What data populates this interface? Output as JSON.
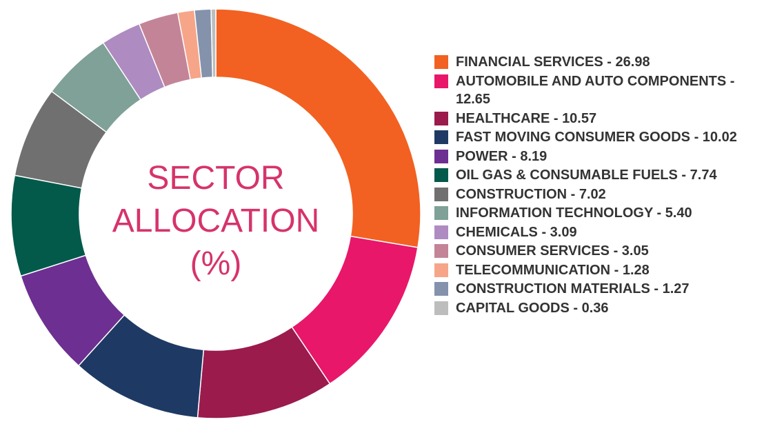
{
  "chart_data": {
    "type": "donut",
    "title": "SECTOR ALLOCATION (%)",
    "categories": [
      "FINANCIAL SERVICES - 26.98",
      "AUTOMOBILE AND AUTO COMPONENTS - 12.65",
      "HEALTHCARE - 10.57",
      "FAST MOVING CONSUMER GOODS - 10.02",
      "POWER - 8.19",
      "OIL GAS & CONSUMABLE FUELS - 7.74",
      "CONSTRUCTION - 7.02",
      "INFORMATION TECHNOLOGY - 5.40",
      "CHEMICALS - 3.09",
      "CONSUMER SERVICES - 3.05",
      "TELECOMMUNICATION - 1.28",
      "CONSTRUCTION MATERIALS - 1.27",
      "CAPITAL GOODS - 0.36"
    ],
    "values": [
      26.98,
      12.65,
      10.57,
      10.02,
      8.19,
      7.74,
      7.02,
      5.4,
      3.09,
      3.05,
      1.28,
      1.27,
      0.36
    ],
    "colors": [
      "#f26122",
      "#e8176a",
      "#9b1b4d",
      "#1e3a64",
      "#6d2f91",
      "#045a4a",
      "#707070",
      "#7fa197",
      "#ae8bc1",
      "#c48497",
      "#f6a589",
      "#8492ac",
      "#bdbdbd"
    ],
    "legend": "right"
  }
}
